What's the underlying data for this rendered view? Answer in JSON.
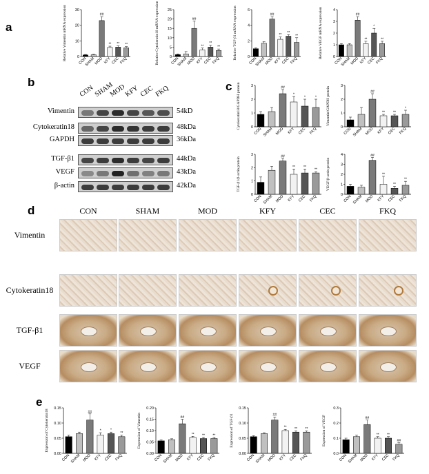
{
  "panel_labels": {
    "a": "a",
    "b": "b",
    "c": "c",
    "d": "d",
    "e": "e"
  },
  "groups": [
    "CON",
    "SHAM",
    "MOD",
    "KFY",
    "CEC",
    "FKQ"
  ],
  "colors": {
    "CON": "#000000",
    "SHAM": "#c0c0c0",
    "MOD": "#7a7a7a",
    "KFY": "#f2f2f2",
    "CEC": "#555555",
    "FKQ": "#9a9a9a"
  },
  "blot": {
    "lane_labels": [
      "CON",
      "SHAM",
      "MOD",
      "KFY",
      "CEC",
      "FKQ"
    ],
    "rows": [
      {
        "label": "Vimentin",
        "kda": "54kD",
        "intensity": [
          0.5,
          0.8,
          0.95,
          0.8,
          0.7,
          0.75
        ]
      },
      {
        "label": "Cytokeratin18",
        "kda": "48kDa",
        "intensity": [
          0.6,
          0.8,
          0.95,
          0.9,
          0.85,
          0.85
        ]
      },
      {
        "label": "GAPDH",
        "kda": "36kDa",
        "intensity": [
          0.85,
          0.85,
          0.85,
          0.85,
          0.85,
          0.85
        ]
      },
      {
        "label": "TGF-β1",
        "kda": "44kDa",
        "intensity": [
          0.8,
          0.85,
          0.95,
          0.85,
          0.8,
          0.85
        ]
      },
      {
        "label": "VEGF",
        "kda": "43kDa",
        "intensity": [
          0.4,
          0.5,
          1.0,
          0.55,
          0.45,
          0.5
        ]
      },
      {
        "label": "β-actin",
        "kda": "42kDa",
        "intensity": [
          0.85,
          0.85,
          0.85,
          0.85,
          0.85,
          0.85
        ]
      }
    ]
  },
  "ihc": {
    "columns": [
      "CON",
      "SHAM",
      "MOD",
      "KFY",
      "CEC",
      "FKQ"
    ],
    "rows": [
      {
        "label": "Vimentin",
        "style": "field"
      },
      {
        "label": "Cytokeratin18",
        "style": "field"
      },
      {
        "label": "TGF-β1",
        "style": "uterus"
      },
      {
        "label": "VEGF",
        "style": "uterus"
      }
    ]
  },
  "chart_data": [
    {
      "panel": "a",
      "type": "bar",
      "ylabel": "Relative Vimentin mRNA expression",
      "categories": [
        "CON",
        "SHAM",
        "MOD",
        "KFY",
        "CEC",
        "FKQ"
      ],
      "values": [
        1.0,
        1.1,
        23.0,
        5.8,
        6.0,
        5.5
      ],
      "errors": [
        0.3,
        0.3,
        2.5,
        0.8,
        0.8,
        0.8
      ],
      "annotations": [
        "",
        "",
        "##",
        "**",
        "**",
        "**"
      ],
      "ylim": [
        0,
        30
      ],
      "yticks": [
        "0",
        "10",
        "20",
        "30"
      ]
    },
    {
      "panel": "a",
      "type": "bar",
      "ylabel": "Relative Cytokeratin18 mRNA expression",
      "categories": [
        "CON",
        "SHAM",
        "MOD",
        "KFY",
        "CEC",
        "FKQ"
      ],
      "values": [
        1.0,
        1.4,
        15.0,
        3.5,
        5.0,
        3.2
      ],
      "errors": [
        0.4,
        1.2,
        4.0,
        1.0,
        1.0,
        0.8
      ],
      "annotations": [
        "",
        "",
        "##",
        "**",
        "**",
        "**"
      ],
      "ylim": [
        0,
        25
      ],
      "yticks": [
        "0",
        "5",
        "10",
        "15",
        "20",
        "25"
      ]
    },
    {
      "panel": "a",
      "type": "bar",
      "ylabel": "Relative TGF-β1 mRNA expression",
      "categories": [
        "CON",
        "SHAM",
        "MOD",
        "KFY",
        "CEC",
        "FKQ"
      ],
      "values": [
        1.0,
        1.7,
        4.8,
        2.2,
        2.6,
        1.8
      ],
      "errors": [
        0.1,
        0.2,
        0.3,
        0.3,
        0.2,
        0.6
      ],
      "annotations": [
        "",
        "",
        "##",
        "**",
        "**",
        "**"
      ],
      "ylim": [
        0,
        6
      ],
      "yticks": [
        "0",
        "2",
        "4",
        "6"
      ]
    },
    {
      "panel": "a",
      "type": "bar",
      "ylabel": "Relative VEGF mRNA expression",
      "categories": [
        "CON",
        "SHAM",
        "MOD",
        "KFY",
        "CEC",
        "FKQ"
      ],
      "values": [
        1.0,
        1.0,
        3.1,
        1.1,
        2.0,
        1.1
      ],
      "errors": [
        0.1,
        0.1,
        0.3,
        0.2,
        0.4,
        0.2
      ],
      "annotations": [
        "",
        "",
        "##",
        "**",
        "*",
        "**"
      ],
      "ylim": [
        0,
        4
      ],
      "yticks": [
        "0",
        "1",
        "2",
        "3",
        "4"
      ]
    },
    {
      "panel": "c",
      "type": "bar",
      "ylabel": "Cytokeratin18/GAPDH protein",
      "categories": [
        "CON",
        "SHAM",
        "MOD",
        "KFY",
        "CEC",
        "FKQ"
      ],
      "values": [
        0.9,
        1.1,
        2.4,
        1.8,
        1.5,
        1.4
      ],
      "errors": [
        0.2,
        0.3,
        0.3,
        0.4,
        0.5,
        0.6
      ],
      "annotations": [
        "",
        "",
        "##",
        "*",
        "*",
        "*"
      ],
      "ylim": [
        0,
        3
      ],
      "yticks": [
        "0",
        "1",
        "2",
        "3"
      ]
    },
    {
      "panel": "c",
      "type": "bar",
      "ylabel": "Vimentin/GAPDH protein",
      "categories": [
        "CON",
        "SHAM",
        "MOD",
        "KFY",
        "CEC",
        "FKQ"
      ],
      "values": [
        0.5,
        0.9,
        2.0,
        0.8,
        0.8,
        0.9
      ],
      "errors": [
        0.2,
        0.5,
        0.4,
        0.1,
        0.1,
        0.3
      ],
      "annotations": [
        "",
        "",
        "##",
        "**",
        "**",
        "*"
      ],
      "ylim": [
        0,
        3
      ],
      "yticks": [
        "0",
        "1",
        "2",
        "3"
      ]
    },
    {
      "panel": "c",
      "type": "bar",
      "ylabel": "TGF-β1/β-actin protein",
      "categories": [
        "CON",
        "SHAM",
        "MOD",
        "KFY",
        "CEC",
        "FKQ"
      ],
      "values": [
        0.9,
        1.8,
        2.5,
        1.5,
        1.6,
        1.6
      ],
      "errors": [
        0.4,
        0.3,
        0.2,
        0.4,
        0.3,
        0.1
      ],
      "annotations": [
        "",
        "",
        "##",
        "**",
        "**",
        "**"
      ],
      "ylim": [
        0,
        3
      ],
      "yticks": [
        "0",
        "1",
        "2",
        "3"
      ]
    },
    {
      "panel": "c",
      "type": "bar",
      "ylabel": "VEGF/β-actin protein",
      "categories": [
        "CON",
        "SHAM",
        "MOD",
        "KFY",
        "CEC",
        "FKQ"
      ],
      "values": [
        0.8,
        0.7,
        3.4,
        1.0,
        0.6,
        0.9
      ],
      "errors": [
        0.2,
        0.2,
        0.3,
        0.8,
        0.2,
        0.4
      ],
      "annotations": [
        "",
        "",
        "##",
        "**",
        "**",
        "**"
      ],
      "ylim": [
        0,
        4
      ],
      "yticks": [
        "0",
        "1",
        "2",
        "3",
        "4"
      ]
    },
    {
      "panel": "e",
      "type": "bar",
      "ylabel": "Expression of Cytokeratin18",
      "categories": [
        "CON",
        "SHAM",
        "MOD",
        "KFY",
        "CEC",
        "FKQ"
      ],
      "values": [
        0.055,
        0.065,
        0.11,
        0.06,
        0.065,
        0.055
      ],
      "errors": [
        0.005,
        0.005,
        0.02,
        0.008,
        0.005,
        0.005
      ],
      "annotations": [
        "",
        "",
        "##",
        "*",
        "*",
        "**"
      ],
      "ylim": [
        0,
        0.15
      ],
      "yticks": [
        "0.00",
        "0.05",
        "0.10",
        "0.15"
      ]
    },
    {
      "panel": "e",
      "type": "bar",
      "ylabel": "Expression of Vimentin",
      "categories": [
        "CON",
        "SHAM",
        "MOD",
        "KFY",
        "CEC",
        "FKQ"
      ],
      "values": [
        0.055,
        0.06,
        0.13,
        0.07,
        0.065,
        0.065
      ],
      "errors": [
        0.004,
        0.004,
        0.02,
        0.005,
        0.005,
        0.005
      ],
      "annotations": [
        "",
        "",
        "##",
        "**",
        "**",
        "**"
      ],
      "ylim": [
        0,
        0.2
      ],
      "yticks": [
        "0.00",
        "0.05",
        "0.10",
        "0.15",
        "0.20"
      ]
    },
    {
      "panel": "e",
      "type": "bar",
      "ylabel": "Expression of TGF-β1",
      "categories": [
        "CON",
        "SHAM",
        "MOD",
        "KFY",
        "CEC",
        "FKQ"
      ],
      "values": [
        0.055,
        0.065,
        0.11,
        0.075,
        0.07,
        0.07
      ],
      "errors": [
        0.003,
        0.003,
        0.01,
        0.004,
        0.004,
        0.004
      ],
      "annotations": [
        "",
        "",
        "##",
        "**",
        "**",
        "**"
      ],
      "ylim": [
        0,
        0.15
      ],
      "yticks": [
        "0.00",
        "0.05",
        "0.10",
        "0.15"
      ]
    },
    {
      "panel": "e",
      "type": "bar",
      "ylabel": "Expression of VEGF",
      "categories": [
        "CON",
        "SHAM",
        "MOD",
        "KFY",
        "CEC",
        "FKQ"
      ],
      "values": [
        0.09,
        0.11,
        0.19,
        0.1,
        0.1,
        0.06
      ],
      "errors": [
        0.01,
        0.01,
        0.03,
        0.01,
        0.01,
        0.01
      ],
      "annotations": [
        "",
        "",
        "##",
        "**",
        "**",
        "##"
      ],
      "ylim": [
        0,
        0.3
      ],
      "yticks": [
        "0.0",
        "0.1",
        "0.2",
        "0.3"
      ]
    }
  ]
}
